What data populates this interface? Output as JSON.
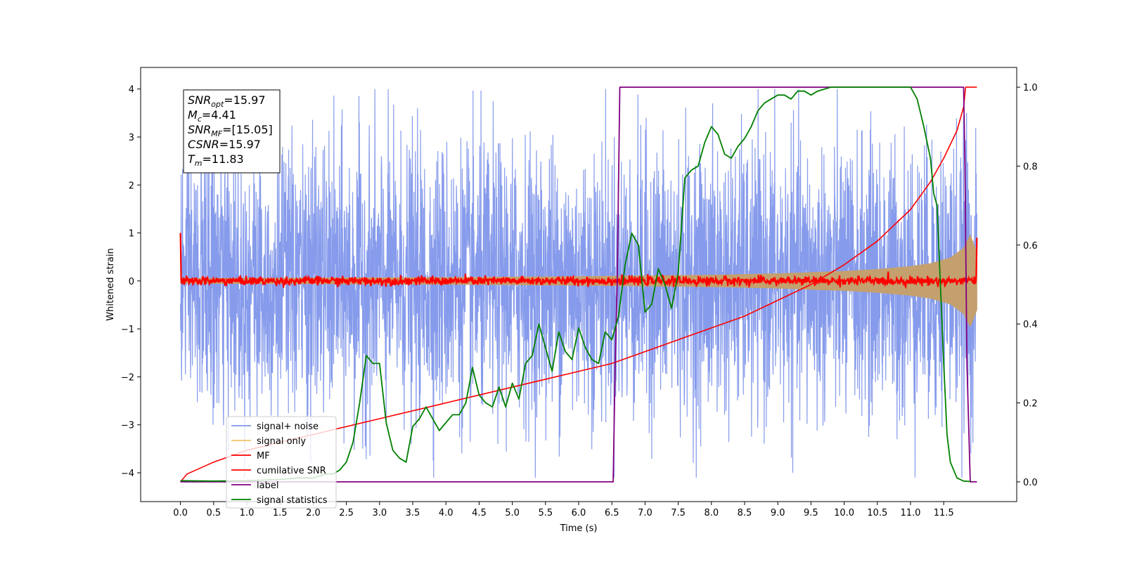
{
  "chart_data": {
    "type": "line",
    "xlabel": "Time (s)",
    "ylabel": "Whitened strain",
    "xlim": [
      -0.6,
      12.6
    ],
    "ylim": [
      -4.6,
      4.45
    ],
    "y2lim": [
      -0.05,
      1.05
    ],
    "x_ticks": [
      "0.0",
      "0.5",
      "1.0",
      "1.5",
      "2.0",
      "2.5",
      "3.0",
      "3.5",
      "4.0",
      "4.5",
      "5.0",
      "5.5",
      "6.0",
      "6.5",
      "7.0",
      "7.5",
      "8.0",
      "8.5",
      "9.0",
      "9.5",
      "10.0",
      "10.5",
      "11.0",
      "11.5"
    ],
    "y_ticks": [
      "4",
      "3",
      "2",
      "1",
      "0",
      "−1",
      "−2",
      "−3",
      "−4"
    ],
    "y2_ticks": [
      "1.0",
      "0.8",
      "0.6",
      "0.4",
      "0.2",
      "0.0"
    ],
    "annotation": {
      "lines": [
        {
          "sym": "SNR",
          "sub": "opt",
          "text": "=15.97"
        },
        {
          "sym": "M",
          "sub": "c",
          "text": "=4.41"
        },
        {
          "sym": "SNR",
          "sub": "MF",
          "text": "=[15.05]"
        },
        {
          "sym": "CSNR",
          "sub": "",
          "text": "=15.97"
        },
        {
          "sym": "T",
          "sub": "m",
          "text": "=11.83"
        }
      ]
    },
    "legend": {
      "position": "lower-left",
      "entries": [
        {
          "name": "signal+ noise",
          "color": "#7f96ea"
        },
        {
          "name": "signal only",
          "color": "#f5c26b"
        },
        {
          "name": "MF",
          "color": "#ff0000"
        },
        {
          "name": "cumilative SNR",
          "color": "#ff0000"
        },
        {
          "name": "label",
          "color": "#800080"
        },
        {
          "name": "signal statistics",
          "color": "#008000"
        }
      ]
    },
    "series": [
      {
        "name": "signal+ noise",
        "axis": "left",
        "color": "#7f96ea",
        "amplitude_std": 1.4,
        "x_range": [
          0.0,
          12.0
        ]
      },
      {
        "name": "signal only",
        "axis": "left",
        "color": "#c4a06e",
        "envelope": {
          "x": [
            0,
            2,
            4,
            6,
            8,
            9,
            10,
            10.5,
            11,
            11.3,
            11.6,
            11.8,
            11.9,
            12.0
          ],
          "amp": [
            0.05,
            0.06,
            0.07,
            0.09,
            0.12,
            0.15,
            0.2,
            0.24,
            0.3,
            0.36,
            0.48,
            0.68,
            0.95,
            0.6
          ]
        }
      },
      {
        "name": "MF",
        "axis": "left",
        "color": "#ff0000",
        "baseline": 0.0,
        "noise_std": 0.045,
        "edges": [
          {
            "x": 0.0,
            "y": 1.0
          },
          {
            "x": 12.0,
            "y": 0.9
          }
        ]
      },
      {
        "name": "cumilative SNR",
        "axis": "right",
        "color": "#ff0000",
        "x": [
          0,
          0.1,
          0.5,
          1,
          2,
          3,
          4,
          5,
          6,
          6.5,
          7,
          7.5,
          8,
          8.5,
          9,
          9.5,
          10,
          10.5,
          11,
          11.3,
          11.5,
          11.7,
          11.8,
          11.83,
          12.0
        ],
        "y": [
          0.0,
          0.02,
          0.05,
          0.08,
          0.12,
          0.16,
          0.2,
          0.24,
          0.28,
          0.3,
          0.33,
          0.36,
          0.39,
          0.42,
          0.46,
          0.5,
          0.55,
          0.61,
          0.69,
          0.76,
          0.82,
          0.89,
          0.95,
          1.0,
          1.0
        ]
      },
      {
        "name": "label",
        "axis": "right",
        "color": "#800080",
        "x": [
          0,
          6.52,
          6.55,
          6.58,
          6.62,
          11.8,
          11.82,
          11.85,
          11.9,
          12.0
        ],
        "y": [
          0,
          0,
          0.3,
          0.5,
          1,
          1,
          0.8,
          0.3,
          0,
          0
        ]
      },
      {
        "name": "signal statistics",
        "axis": "right",
        "color": "#008000",
        "x": [
          0,
          0.5,
          1.0,
          1.5,
          1.8,
          2.0,
          2.2,
          2.3,
          2.4,
          2.5,
          2.6,
          2.7,
          2.8,
          2.9,
          3.0,
          3.1,
          3.2,
          3.3,
          3.4,
          3.5,
          3.6,
          3.7,
          3.8,
          3.9,
          4.0,
          4.1,
          4.2,
          4.3,
          4.4,
          4.5,
          4.6,
          4.7,
          4.8,
          4.9,
          5.0,
          5.1,
          5.2,
          5.3,
          5.4,
          5.5,
          5.6,
          5.7,
          5.8,
          5.9,
          6.0,
          6.1,
          6.2,
          6.3,
          6.4,
          6.5,
          6.6,
          6.7,
          6.8,
          6.9,
          7.0,
          7.1,
          7.2,
          7.3,
          7.4,
          7.5,
          7.6,
          7.7,
          7.8,
          7.9,
          8.0,
          8.1,
          8.2,
          8.3,
          8.4,
          8.5,
          8.6,
          8.7,
          8.8,
          8.9,
          9.0,
          9.1,
          9.2,
          9.3,
          9.4,
          9.5,
          9.6,
          9.8,
          10.0,
          10.3,
          10.6,
          11.0,
          11.1,
          11.2,
          11.3,
          11.35,
          11.4,
          11.45,
          11.5,
          11.55,
          11.6,
          11.7,
          11.8,
          11.9
        ],
        "y": [
          0.003,
          0.002,
          0.003,
          0.006,
          0.01,
          0.01,
          0.02,
          0.02,
          0.03,
          0.05,
          0.1,
          0.2,
          0.32,
          0.3,
          0.3,
          0.15,
          0.08,
          0.06,
          0.05,
          0.14,
          0.16,
          0.19,
          0.16,
          0.13,
          0.15,
          0.17,
          0.17,
          0.2,
          0.29,
          0.22,
          0.2,
          0.19,
          0.24,
          0.19,
          0.25,
          0.21,
          0.3,
          0.32,
          0.4,
          0.34,
          0.28,
          0.38,
          0.33,
          0.31,
          0.39,
          0.34,
          0.31,
          0.3,
          0.38,
          0.36,
          0.42,
          0.55,
          0.63,
          0.6,
          0.43,
          0.45,
          0.54,
          0.5,
          0.44,
          0.53,
          0.77,
          0.79,
          0.8,
          0.86,
          0.9,
          0.88,
          0.83,
          0.82,
          0.85,
          0.87,
          0.9,
          0.94,
          0.96,
          0.97,
          0.98,
          0.98,
          0.97,
          0.99,
          0.99,
          0.98,
          0.99,
          1.0,
          1.0,
          1.0,
          1.0,
          1.0,
          0.97,
          0.9,
          0.82,
          0.73,
          0.7,
          0.5,
          0.3,
          0.12,
          0.05,
          0.01,
          0.002,
          0.001
        ]
      }
    ]
  }
}
